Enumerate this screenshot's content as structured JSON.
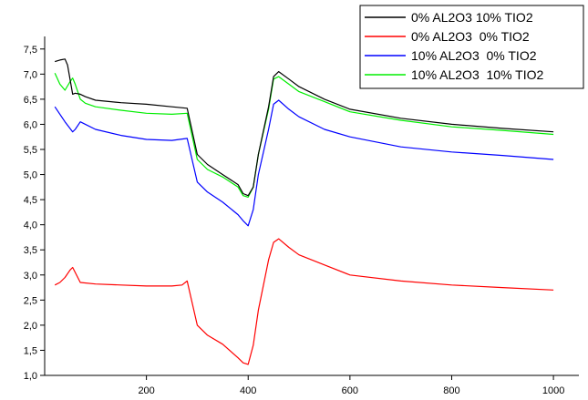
{
  "chart_data": {
    "type": "line",
    "title": "",
    "xlabel": "",
    "ylabel": "",
    "xlim": [
      0,
      1050
    ],
    "ylim": [
      1.0,
      7.75
    ],
    "x_ticks": [
      200,
      400,
      600,
      800,
      1000
    ],
    "x_tick_labels": [
      "200",
      "400",
      "600",
      "800",
      "1000"
    ],
    "y_ticks": [
      1.0,
      1.5,
      2.0,
      2.5,
      3.0,
      3.5,
      4.0,
      4.5,
      5.0,
      5.5,
      6.0,
      6.5,
      7.0,
      7.5
    ],
    "y_tick_labels": [
      "1,0",
      "1,5",
      "2,0",
      "2,5",
      "3,0",
      "3,5",
      "4,0",
      "4,5",
      "5,0",
      "5,5",
      "6,0",
      "6,5",
      "7,0",
      "7,5"
    ],
    "grid": false,
    "legend_position": "top-right",
    "series": [
      {
        "name": "0% AL2O3 10% TIO2",
        "color": "#000000",
        "x": [
          20,
          30,
          40,
          45,
          55,
          60,
          70,
          80,
          100,
          150,
          200,
          250,
          280,
          300,
          320,
          350,
          380,
          390,
          400,
          410,
          420,
          440,
          450,
          460,
          480,
          500,
          550,
          600,
          700,
          800,
          900,
          1000
        ],
        "y": [
          7.25,
          7.28,
          7.3,
          7.18,
          6.6,
          6.62,
          6.6,
          6.55,
          6.48,
          6.43,
          6.4,
          6.35,
          6.32,
          5.4,
          5.2,
          5.0,
          4.8,
          4.62,
          4.58,
          4.75,
          5.4,
          6.35,
          6.95,
          7.05,
          6.9,
          6.75,
          6.5,
          6.3,
          6.12,
          6.0,
          5.92,
          5.85
        ]
      },
      {
        "name": "0% AL2O3  0% TIO2",
        "color": "#ff0000",
        "x": [
          20,
          30,
          40,
          50,
          55,
          60,
          70,
          100,
          150,
          200,
          250,
          270,
          280,
          300,
          320,
          350,
          380,
          390,
          400,
          410,
          420,
          440,
          450,
          460,
          480,
          500,
          550,
          600,
          700,
          800,
          900,
          1000
        ],
        "y": [
          2.8,
          2.85,
          2.95,
          3.1,
          3.15,
          3.05,
          2.85,
          2.82,
          2.8,
          2.78,
          2.78,
          2.8,
          2.88,
          2.0,
          1.8,
          1.62,
          1.35,
          1.25,
          1.22,
          1.6,
          2.3,
          3.3,
          3.65,
          3.72,
          3.55,
          3.4,
          3.2,
          3.0,
          2.88,
          2.8,
          2.75,
          2.7
        ]
      },
      {
        "name": "10% AL2O3  0% TIO2",
        "color": "#0000ff",
        "x": [
          20,
          40,
          55,
          60,
          70,
          80,
          100,
          150,
          200,
          250,
          280,
          300,
          320,
          350,
          380,
          390,
          400,
          410,
          420,
          440,
          450,
          460,
          480,
          500,
          550,
          600,
          700,
          800,
          900,
          1000
        ],
        "y": [
          6.35,
          6.05,
          5.85,
          5.9,
          6.05,
          6.0,
          5.9,
          5.78,
          5.7,
          5.68,
          5.72,
          4.85,
          4.65,
          4.45,
          4.2,
          4.08,
          3.98,
          4.3,
          5.0,
          5.9,
          6.4,
          6.48,
          6.3,
          6.15,
          5.9,
          5.75,
          5.55,
          5.45,
          5.38,
          5.3
        ]
      },
      {
        "name": "10% AL2O3  10% TIO2",
        "color": "#00ee00",
        "x": [
          20,
          30,
          40,
          50,
          55,
          60,
          70,
          80,
          100,
          150,
          200,
          250,
          280,
          300,
          320,
          350,
          380,
          390,
          400,
          410,
          420,
          440,
          450,
          460,
          480,
          500,
          550,
          600,
          700,
          800,
          900,
          1000
        ],
        "y": [
          7.02,
          6.8,
          6.68,
          6.85,
          6.92,
          6.8,
          6.5,
          6.42,
          6.35,
          6.28,
          6.22,
          6.2,
          6.22,
          5.3,
          5.1,
          4.95,
          4.75,
          4.58,
          4.55,
          4.75,
          5.4,
          6.3,
          6.9,
          6.95,
          6.8,
          6.65,
          6.45,
          6.25,
          6.08,
          5.95,
          5.88,
          5.8
        ]
      }
    ]
  }
}
